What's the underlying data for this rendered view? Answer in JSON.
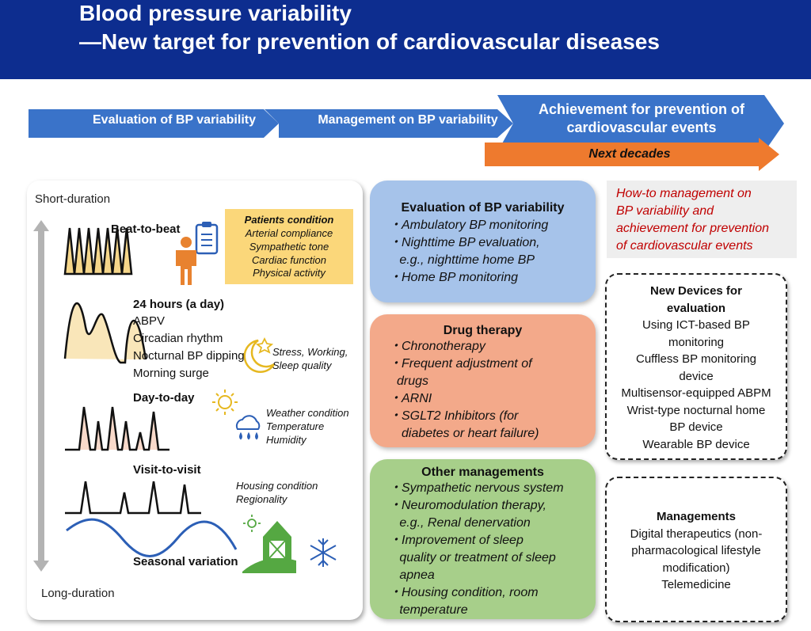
{
  "header": {
    "title_line1": "Blood pressure variability",
    "title_line2": "—New target for prevention of cardiovascular diseases"
  },
  "arrows": {
    "step1": "Evaluation of BP variability",
    "step2": "Management on BP variability",
    "step3_line1": "Achievement for prevention of",
    "step3_line2": "cardiovascular events",
    "next": "Next decades"
  },
  "left_panel": {
    "short_duration": "Short-duration",
    "long_duration": "Long-duration",
    "beat_to_beat": "Beat-to-beat",
    "patients_condition": {
      "title": "Patients condition",
      "items": [
        "Arterial compliance",
        "Sympathetic tone",
        "Cardiac function",
        "Physical activity"
      ]
    },
    "hours24": {
      "title": "24 hours (a day)",
      "items": [
        "ABPV",
        "Circadian rhythm",
        "Nocturnal BP dipping",
        "Morning surge"
      ]
    },
    "stress": [
      "Stress, Working,",
      "Sleep quality"
    ],
    "day_to_day": "Day-to-day",
    "weather": [
      "Weather condition",
      "Temperature",
      "Humidity"
    ],
    "visit_to_visit": "Visit-to-visit",
    "housing": [
      "Housing condition",
      "Regionality"
    ],
    "seasonal": "Seasonal variation"
  },
  "eval_box": {
    "title": "Evaluation of BP variability",
    "items": [
      "・Ambulatory BP monitoring",
      "・Nighttime BP evaluation,",
      "   e.g., nighttime home BP",
      "・Home BP monitoring"
    ]
  },
  "drug_box": {
    "title": "Drug therapy",
    "items": [
      "・Chronotherapy",
      "・Frequent adjustment of",
      "drugs",
      "・ARNI",
      "・SGLT2 Inhibitors (for",
      "diabetes or heart failure)"
    ]
  },
  "other_box": {
    "title": "Other managements",
    "items": [
      "・Sympathetic nervous system",
      "・Neuromodulation therapy,",
      "   e.g., Renal denervation",
      "・Improvement of sleep",
      "   quality or treatment of sleep",
      "   apnea",
      "・Housing condition, room",
      "   temperature"
    ]
  },
  "howto": [
    "How-to management on",
    "BP variability and",
    "achievement for prevention",
    "of cardiovascular events"
  ],
  "devices": {
    "title": [
      "New Devices for",
      "evaluation"
    ],
    "items": [
      "Using ICT-based BP",
      "monitoring",
      "Cuffless BP monitoring",
      "device",
      "Multisensor-equipped ABPM",
      "Wrist-type nocturnal home",
      "BP device",
      "Wearable BP device"
    ]
  },
  "managements": {
    "title": "Managements",
    "items": [
      "Digital therapeutics (non-",
      "pharmacological lifestyle",
      "modification)",
      "Telemedicine"
    ]
  },
  "colors": {
    "header": "#0d2d8f",
    "arrow": "#3a73c9",
    "next": "#ee7a2e",
    "eval": "#a6c3ea",
    "drug": "#f3a98a",
    "other": "#a7cf8a",
    "howto_text": "#c00000",
    "pc_fill": "#fbd77a"
  }
}
